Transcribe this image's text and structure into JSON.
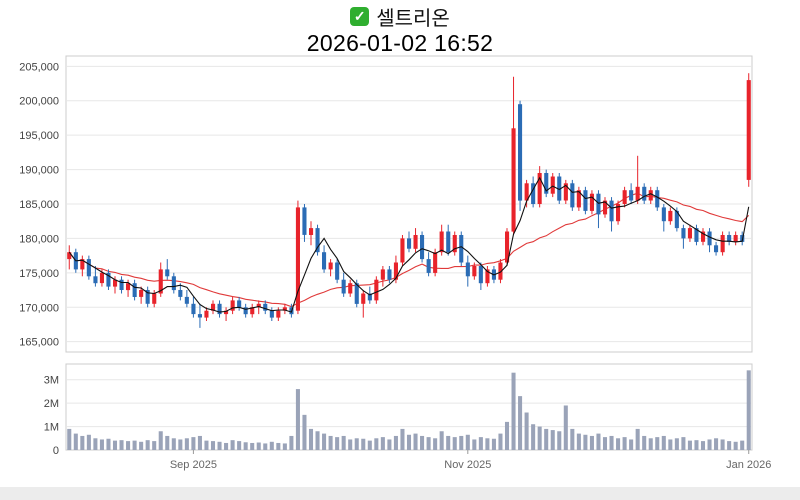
{
  "header": {
    "title": "셀트리온",
    "datetime": "2026-01-02 16:52",
    "check_glyph": "✓"
  },
  "colors": {
    "up": "#e8232b",
    "down": "#2b6cb5",
    "ma_short": "#111111",
    "ma_long": "#e03a3a",
    "volume_bar": "#9aa3b8",
    "grid": "#e7e7e7",
    "axis_text": "#444444",
    "x_axis_text": "#666666",
    "pane_border": "#cccccc",
    "checkbox_green": "#2fae2f"
  },
  "chart_data": {
    "type": "candlestick",
    "title": "셀트리온",
    "timestamp": "2026-01-02 16:52",
    "price_axis": {
      "range": [
        163500,
        206500
      ],
      "ticks": [
        165000,
        170000,
        175000,
        180000,
        185000,
        190000,
        195000,
        200000,
        205000
      ],
      "tick_labels": [
        "165,000",
        "170,000",
        "175,000",
        "180,000",
        "185,000",
        "190,000",
        "195,000",
        "200,000",
        "205,000"
      ]
    },
    "volume_axis": {
      "max": 3500000,
      "ticks": [
        0,
        1000000,
        2000000,
        3000000
      ],
      "tick_labels": [
        "0",
        "1M",
        "2M",
        "3M"
      ]
    },
    "x_axis": {
      "ticks": [
        {
          "label": "Sep 2025",
          "index": 19
        },
        {
          "label": "Nov 2025",
          "index": 61
        },
        {
          "label": "Jan 2026",
          "index": 104
        }
      ]
    },
    "overlays": [
      {
        "name": "MA5",
        "color_key": "ma_short",
        "window": 5
      },
      {
        "name": "MA20",
        "color_key": "ma_long",
        "window": 20
      }
    ],
    "candles_format": [
      "open",
      "high",
      "low",
      "close",
      "volume"
    ],
    "candles": [
      [
        177000,
        179000,
        175500,
        178000,
        900000
      ],
      [
        178000,
        178500,
        175000,
        175500,
        700000
      ],
      [
        175500,
        177500,
        174500,
        177000,
        600000
      ],
      [
        177000,
        177500,
        174000,
        174500,
        650000
      ],
      [
        174500,
        176000,
        173000,
        173500,
        500000
      ],
      [
        173500,
        175500,
        173000,
        175000,
        450000
      ],
      [
        175000,
        175500,
        172500,
        173000,
        480000
      ],
      [
        173000,
        174500,
        172000,
        174000,
        400000
      ],
      [
        174000,
        174500,
        172000,
        172500,
        420000
      ],
      [
        172500,
        174000,
        171500,
        173500,
        380000
      ],
      [
        173500,
        174000,
        171000,
        171500,
        400000
      ],
      [
        171500,
        173000,
        170500,
        172500,
        350000
      ],
      [
        172500,
        173000,
        170000,
        170500,
        420000
      ],
      [
        170500,
        172500,
        170000,
        172000,
        380000
      ],
      [
        172000,
        176500,
        171500,
        175500,
        800000
      ],
      [
        175500,
        177000,
        174000,
        174500,
        600000
      ],
      [
        174500,
        175000,
        172000,
        172500,
        500000
      ],
      [
        172500,
        173500,
        171000,
        171500,
        450000
      ],
      [
        171500,
        172500,
        170000,
        170500,
        500000
      ],
      [
        170500,
        171500,
        168500,
        169000,
        550000
      ],
      [
        169000,
        170500,
        167000,
        168500,
        600000
      ],
      [
        168500,
        170000,
        168000,
        169500,
        400000
      ],
      [
        169500,
        171000,
        169000,
        170500,
        380000
      ],
      [
        170500,
        171000,
        168500,
        169000,
        350000
      ],
      [
        169000,
        170000,
        168000,
        169500,
        300000
      ],
      [
        169500,
        171500,
        169000,
        171000,
        420000
      ],
      [
        171000,
        171500,
        169500,
        170000,
        380000
      ],
      [
        170000,
        170500,
        168500,
        169000,
        330000
      ],
      [
        169000,
        170500,
        168500,
        170000,
        300000
      ],
      [
        170000,
        171000,
        169000,
        170500,
        320000
      ],
      [
        170500,
        171000,
        169000,
        169500,
        280000
      ],
      [
        169500,
        170000,
        168000,
        168500,
        350000
      ],
      [
        168500,
        170000,
        168000,
        169500,
        300000
      ],
      [
        169500,
        170500,
        169000,
        170000,
        280000
      ],
      [
        170000,
        170500,
        168500,
        169000,
        600000
      ],
      [
        169500,
        185500,
        169000,
        184500,
        2600000
      ],
      [
        184500,
        185000,
        179500,
        180500,
        1500000
      ],
      [
        180500,
        182500,
        179000,
        181500,
        900000
      ],
      [
        181500,
        182000,
        177500,
        178000,
        800000
      ],
      [
        178000,
        179000,
        175000,
        175500,
        700000
      ],
      [
        175500,
        177000,
        174500,
        176500,
        600000
      ],
      [
        176500,
        177000,
        173500,
        174000,
        550000
      ],
      [
        174000,
        175000,
        171500,
        172000,
        600000
      ],
      [
        172000,
        174000,
        171500,
        173500,
        450000
      ],
      [
        173500,
        174000,
        170000,
        170500,
        500000
      ],
      [
        170500,
        172500,
        168500,
        172000,
        480000
      ],
      [
        172000,
        173000,
        170500,
        171000,
        400000
      ],
      [
        171000,
        174500,
        170500,
        174000,
        500000
      ],
      [
        174000,
        176000,
        173000,
        175500,
        550000
      ],
      [
        175500,
        176000,
        173500,
        174000,
        450000
      ],
      [
        174000,
        177500,
        173500,
        176500,
        600000
      ],
      [
        176500,
        180500,
        176000,
        180000,
        900000
      ],
      [
        180000,
        181000,
        178000,
        178500,
        650000
      ],
      [
        178500,
        181500,
        178000,
        180500,
        700000
      ],
      [
        180500,
        181000,
        176500,
        177000,
        600000
      ],
      [
        177000,
        178000,
        174500,
        175000,
        550000
      ],
      [
        175000,
        178500,
        174500,
        178000,
        500000
      ],
      [
        178000,
        182000,
        177500,
        181000,
        800000
      ],
      [
        181000,
        182000,
        177500,
        178000,
        600000
      ],
      [
        178000,
        181000,
        177500,
        180500,
        550000
      ],
      [
        180500,
        181000,
        176000,
        176500,
        600000
      ],
      [
        176500,
        177500,
        173000,
        174500,
        650000
      ],
      [
        174500,
        176500,
        174000,
        176000,
        450000
      ],
      [
        176000,
        176500,
        172500,
        173500,
        550000
      ],
      [
        173500,
        176000,
        173000,
        175500,
        500000
      ],
      [
        175500,
        176000,
        173500,
        174000,
        480000
      ],
      [
        174000,
        177000,
        173500,
        176500,
        700000
      ],
      [
        176500,
        181500,
        176000,
        181000,
        1200000
      ],
      [
        181000,
        203500,
        180500,
        196000,
        3300000
      ],
      [
        199500,
        200000,
        184000,
        185500,
        2300000
      ],
      [
        185500,
        188500,
        184500,
        188000,
        1600000
      ],
      [
        188000,
        189000,
        184500,
        185000,
        1100000
      ],
      [
        185000,
        190500,
        184500,
        189500,
        1000000
      ],
      [
        189500,
        190000,
        186000,
        186500,
        900000
      ],
      [
        186500,
        189500,
        186000,
        189000,
        850000
      ],
      [
        189000,
        189500,
        185000,
        185500,
        800000
      ],
      [
        185500,
        188500,
        185000,
        188000,
        1900000
      ],
      [
        188000,
        188500,
        184000,
        184500,
        900000
      ],
      [
        184500,
        187500,
        184000,
        187000,
        700000
      ],
      [
        187000,
        187500,
        183500,
        184000,
        650000
      ],
      [
        184000,
        187000,
        183500,
        186500,
        600000
      ],
      [
        186500,
        187000,
        181500,
        183500,
        700000
      ],
      [
        183500,
        186000,
        183000,
        185500,
        550000
      ],
      [
        185500,
        186000,
        181000,
        182500,
        600000
      ],
      [
        182500,
        185500,
        182000,
        185000,
        500000
      ],
      [
        185000,
        187500,
        184500,
        187000,
        550000
      ],
      [
        187000,
        188000,
        185000,
        185500,
        450000
      ],
      [
        185500,
        192000,
        185000,
        187500,
        900000
      ],
      [
        187500,
        188000,
        185000,
        185500,
        600000
      ],
      [
        185500,
        187500,
        185000,
        187000,
        500000
      ],
      [
        187000,
        187500,
        184000,
        184500,
        550000
      ],
      [
        184500,
        185000,
        181000,
        182500,
        600000
      ],
      [
        182500,
        184500,
        182000,
        184000,
        450000
      ],
      [
        184000,
        184500,
        181000,
        181500,
        500000
      ],
      [
        181500,
        182000,
        178500,
        180000,
        550000
      ],
      [
        180000,
        182000,
        179500,
        181500,
        400000
      ],
      [
        181500,
        182000,
        179000,
        179500,
        420000
      ],
      [
        179500,
        181500,
        179000,
        181000,
        380000
      ],
      [
        181000,
        181500,
        178000,
        179000,
        450000
      ],
      [
        179000,
        179500,
        177500,
        178000,
        500000
      ],
      [
        178000,
        181000,
        177500,
        180500,
        450000
      ],
      [
        180500,
        181000,
        179000,
        179500,
        380000
      ],
      [
        179500,
        181000,
        179000,
        180500,
        350000
      ],
      [
        180500,
        181000,
        179000,
        179500,
        400000
      ],
      [
        188500,
        204000,
        187500,
        203000,
        3400000
      ]
    ]
  }
}
